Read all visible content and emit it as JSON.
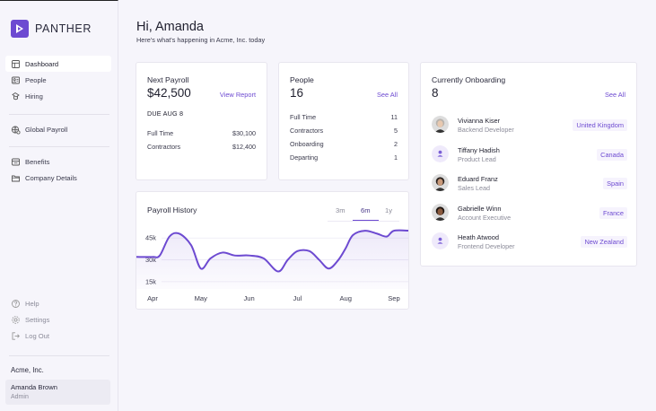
{
  "brand": {
    "name": "PANTHER",
    "accent": "#6d4ad1"
  },
  "sidebar": {
    "main_items": [
      {
        "label": "Dashboard",
        "icon": "dashboard-icon",
        "active": true
      },
      {
        "label": "People",
        "icon": "people-icon"
      },
      {
        "label": "Hiring",
        "icon": "hiring-icon"
      }
    ],
    "payroll_items": [
      {
        "label": "Global Payroll",
        "icon": "global-payroll-icon"
      }
    ],
    "company_items": [
      {
        "label": "Benefits",
        "icon": "benefits-icon"
      },
      {
        "label": "Company Details",
        "icon": "folder-icon"
      }
    ],
    "footer_items": [
      {
        "label": "Help",
        "icon": "help-icon"
      },
      {
        "label": "Settings",
        "icon": "gear-icon"
      },
      {
        "label": "Log Out",
        "icon": "logout-icon"
      }
    ],
    "company": "Acme, Inc.",
    "user": {
      "name": "Amanda Brown",
      "role": "Admin"
    }
  },
  "header": {
    "greeting": "Hi, Amanda",
    "subtitle": "Here's what's happening in Acme, Inc. today"
  },
  "payroll": {
    "title": "Next Payroll",
    "amount": "$42,500",
    "link": "View Report",
    "due": "DUE AUG 8",
    "rows": [
      {
        "label": "Full Time",
        "value": "$30,100"
      },
      {
        "label": "Contractors",
        "value": "$12,400"
      }
    ]
  },
  "people": {
    "title": "People",
    "count": "16",
    "link": "See All",
    "rows": [
      {
        "label": "Full Time",
        "value": "11"
      },
      {
        "label": "Contractors",
        "value": "5"
      },
      {
        "label": "Onboarding",
        "value": "2"
      },
      {
        "label": "Departing",
        "value": "1"
      }
    ]
  },
  "onboarding": {
    "title": "Currently Onboarding",
    "count": "8",
    "link": "See All",
    "people": [
      {
        "name": "Vivianna Kiser",
        "role": "Backend Developer",
        "country": "United Kingdom",
        "photo": true,
        "skin": "#e8c9b0",
        "hair": "#b8b3ad"
      },
      {
        "name": "Tiffany Hadish",
        "role": "Product Lead",
        "country": "Canada",
        "photo": false
      },
      {
        "name": "Eduard Franz",
        "role": "Sales Lead",
        "country": "Spain",
        "photo": true,
        "skin": "#c99a7a",
        "hair": "#2b2320"
      },
      {
        "name": "Gabrielle Winn",
        "role": "Account Executive",
        "country": "France",
        "photo": true,
        "skin": "#8a5a3e",
        "hair": "#1e1612"
      },
      {
        "name": "Heath Atwood",
        "role": "Frontend Developer",
        "country": "New Zealand",
        "photo": false
      }
    ]
  },
  "history": {
    "title": "Payroll History",
    "tabs": [
      {
        "label": "3m",
        "active": false
      },
      {
        "label": "6m",
        "active": true
      },
      {
        "label": "1y",
        "active": false
      }
    ]
  },
  "chart_data": {
    "type": "line",
    "x": [
      "Apr",
      "May",
      "Jun",
      "Jul",
      "Aug",
      "Sep"
    ],
    "y_ticks": [
      "45k",
      "30k",
      "15k"
    ],
    "y_tick_values": [
      45000,
      30000,
      15000
    ],
    "series": [
      {
        "points": [
          [
            0.0,
            32000
          ],
          [
            0.15,
            33000
          ],
          [
            0.35,
            46000
          ],
          [
            0.55,
            48000
          ],
          [
            0.8,
            40000
          ],
          [
            1.0,
            24000
          ],
          [
            1.2,
            31000
          ],
          [
            1.45,
            35000
          ],
          [
            1.7,
            33000
          ],
          [
            2.0,
            33000
          ],
          [
            2.3,
            31000
          ],
          [
            2.6,
            22000
          ],
          [
            2.8,
            30000
          ],
          [
            3.0,
            36000
          ],
          [
            3.25,
            36000
          ],
          [
            3.45,
            30000
          ],
          [
            3.65,
            24000
          ],
          [
            3.85,
            30000
          ],
          [
            4.0,
            38000
          ],
          [
            4.15,
            47000
          ],
          [
            4.4,
            50000
          ],
          [
            4.65,
            48000
          ],
          [
            4.85,
            46000
          ],
          [
            5.0,
            50000
          ]
        ]
      }
    ],
    "ylim": [
      10000,
      55000
    ],
    "grid": true,
    "line_color": "#6d4ad1"
  }
}
